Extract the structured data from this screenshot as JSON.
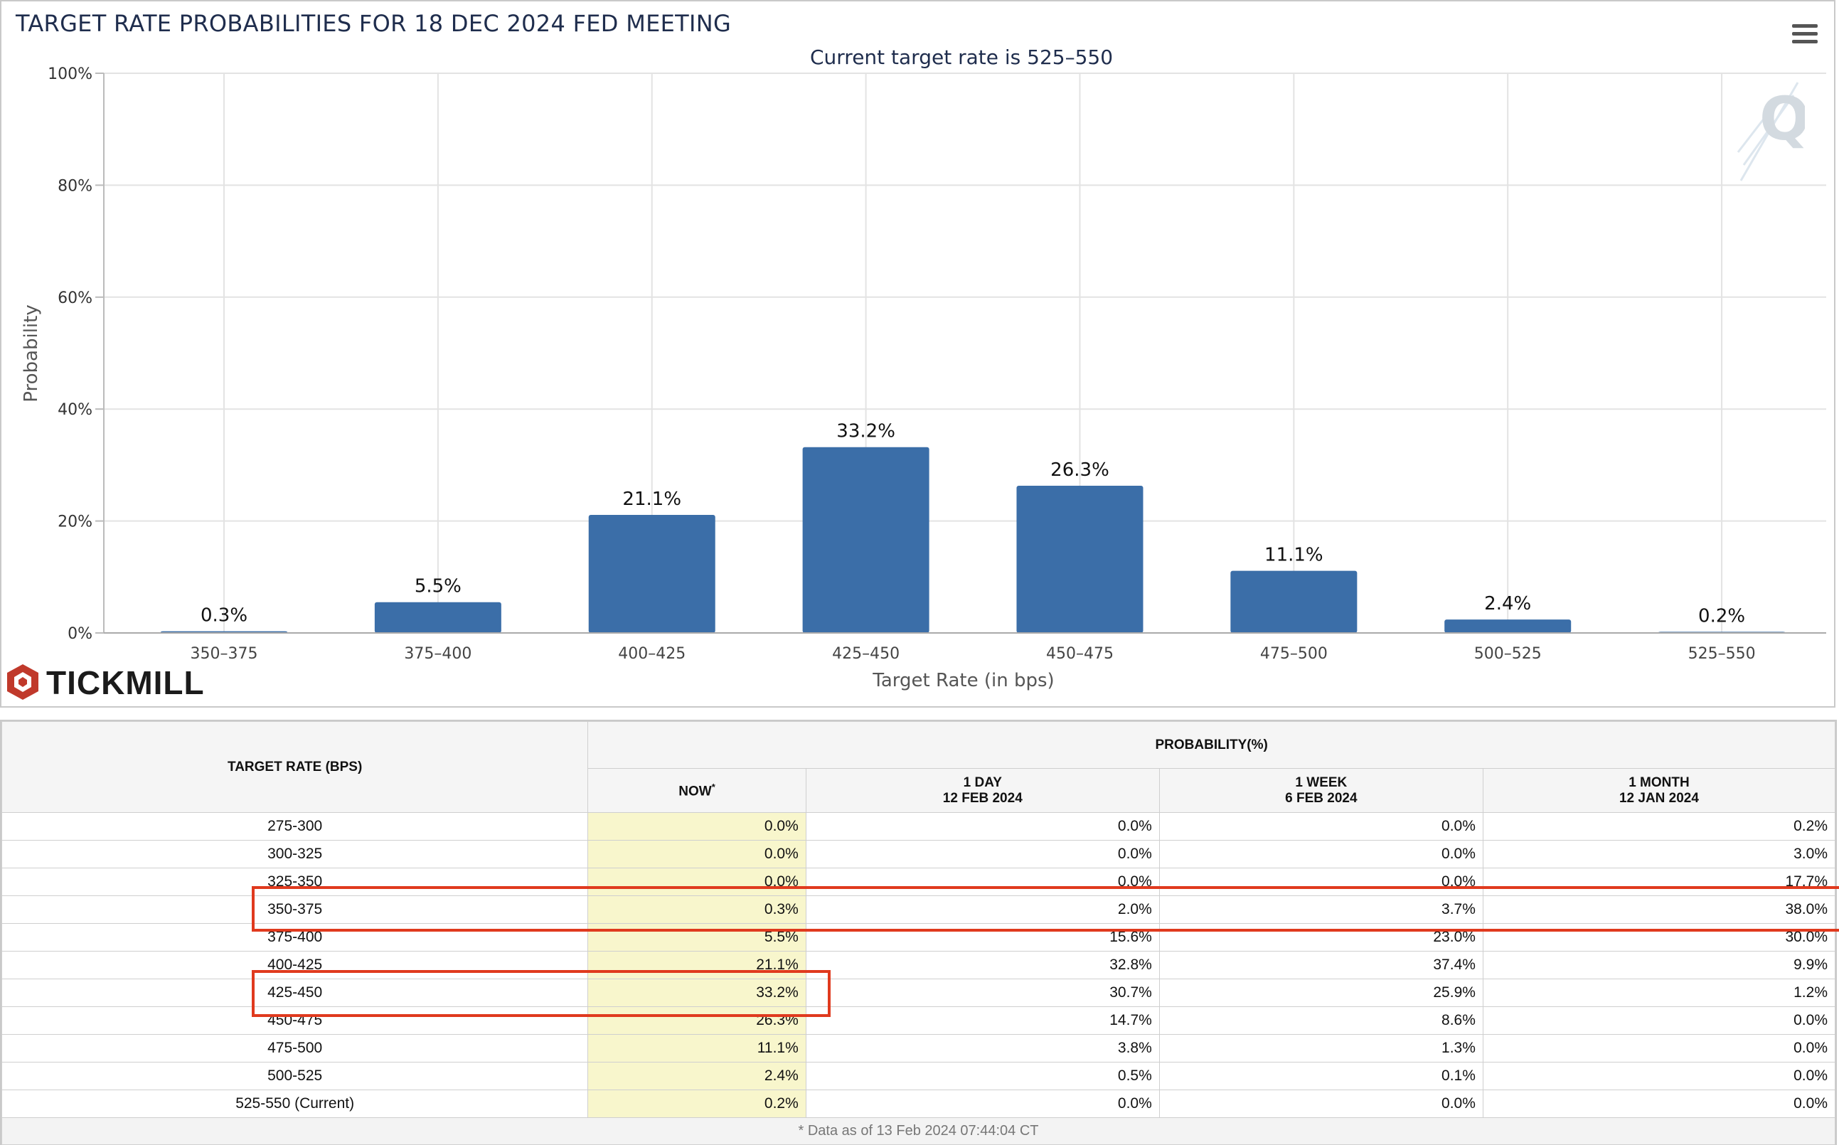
{
  "chart_data": {
    "type": "bar",
    "title": "TARGET RATE PROBABILITIES FOR 18 DEC 2024 FED MEETING",
    "subtitle": "Current target rate is 525–550",
    "xlabel": "Target Rate (in bps)",
    "ylabel": "Probability",
    "ylim": [
      0,
      100
    ],
    "yticks": [
      "0%",
      "20%",
      "40%",
      "60%",
      "80%",
      "100%"
    ],
    "ytick_values": [
      0,
      20,
      40,
      60,
      80,
      100
    ],
    "categories": [
      "350–375",
      "375–400",
      "400–425",
      "425–450",
      "450–475",
      "475–500",
      "500–525",
      "525–550"
    ],
    "values": [
      0.3,
      5.5,
      21.1,
      33.2,
      26.3,
      11.1,
      2.4,
      0.2
    ],
    "data_labels": [
      "0.3%",
      "5.5%",
      "21.1%",
      "33.2%",
      "26.3%",
      "11.1%",
      "2.4%",
      "0.2%"
    ],
    "bar_color": "#3b6ea8",
    "grid": true
  },
  "brand": {
    "name": "TICKMILL",
    "accent": "#c0392b"
  },
  "table": {
    "group_header": "PROBABILITY(%)",
    "rate_header": "TARGET RATE (BPS)",
    "columns": [
      {
        "line1": "NOW",
        "line2": ""
      },
      {
        "line1": "1 DAY",
        "line2": "12 FEB 2024"
      },
      {
        "line1": "1 WEEK",
        "line2": "6 FEB 2024"
      },
      {
        "line1": "1 MONTH",
        "line2": "12 JAN 2024"
      }
    ],
    "now_marker": "*",
    "rows": [
      {
        "rate": "275-300",
        "values": [
          "0.0%",
          "0.0%",
          "0.0%",
          "0.2%"
        ]
      },
      {
        "rate": "300-325",
        "values": [
          "0.0%",
          "0.0%",
          "0.0%",
          "3.0%"
        ]
      },
      {
        "rate": "325-350",
        "values": [
          "0.0%",
          "0.0%",
          "0.0%",
          "17.7%"
        ]
      },
      {
        "rate": "350-375",
        "values": [
          "0.3%",
          "2.0%",
          "3.7%",
          "38.0%"
        ]
      },
      {
        "rate": "375-400",
        "values": [
          "5.5%",
          "15.6%",
          "23.0%",
          "30.0%"
        ]
      },
      {
        "rate": "400-425",
        "values": [
          "21.1%",
          "32.8%",
          "37.4%",
          "9.9%"
        ]
      },
      {
        "rate": "425-450",
        "values": [
          "33.2%",
          "30.7%",
          "25.9%",
          "1.2%"
        ]
      },
      {
        "rate": "450-475",
        "values": [
          "26.3%",
          "14.7%",
          "8.6%",
          "0.0%"
        ]
      },
      {
        "rate": "475-500",
        "values": [
          "11.1%",
          "3.8%",
          "1.3%",
          "0.0%"
        ]
      },
      {
        "rate": "500-525",
        "values": [
          "2.4%",
          "0.5%",
          "0.1%",
          "0.0%"
        ]
      },
      {
        "rate": "525-550 (Current)",
        "values": [
          "0.2%",
          "0.0%",
          "0.0%",
          "0.0%"
        ]
      }
    ],
    "footnote": "* Data as of 13 Feb 2024 07:44:04 CT",
    "highlight_color": "#e03a1e"
  }
}
